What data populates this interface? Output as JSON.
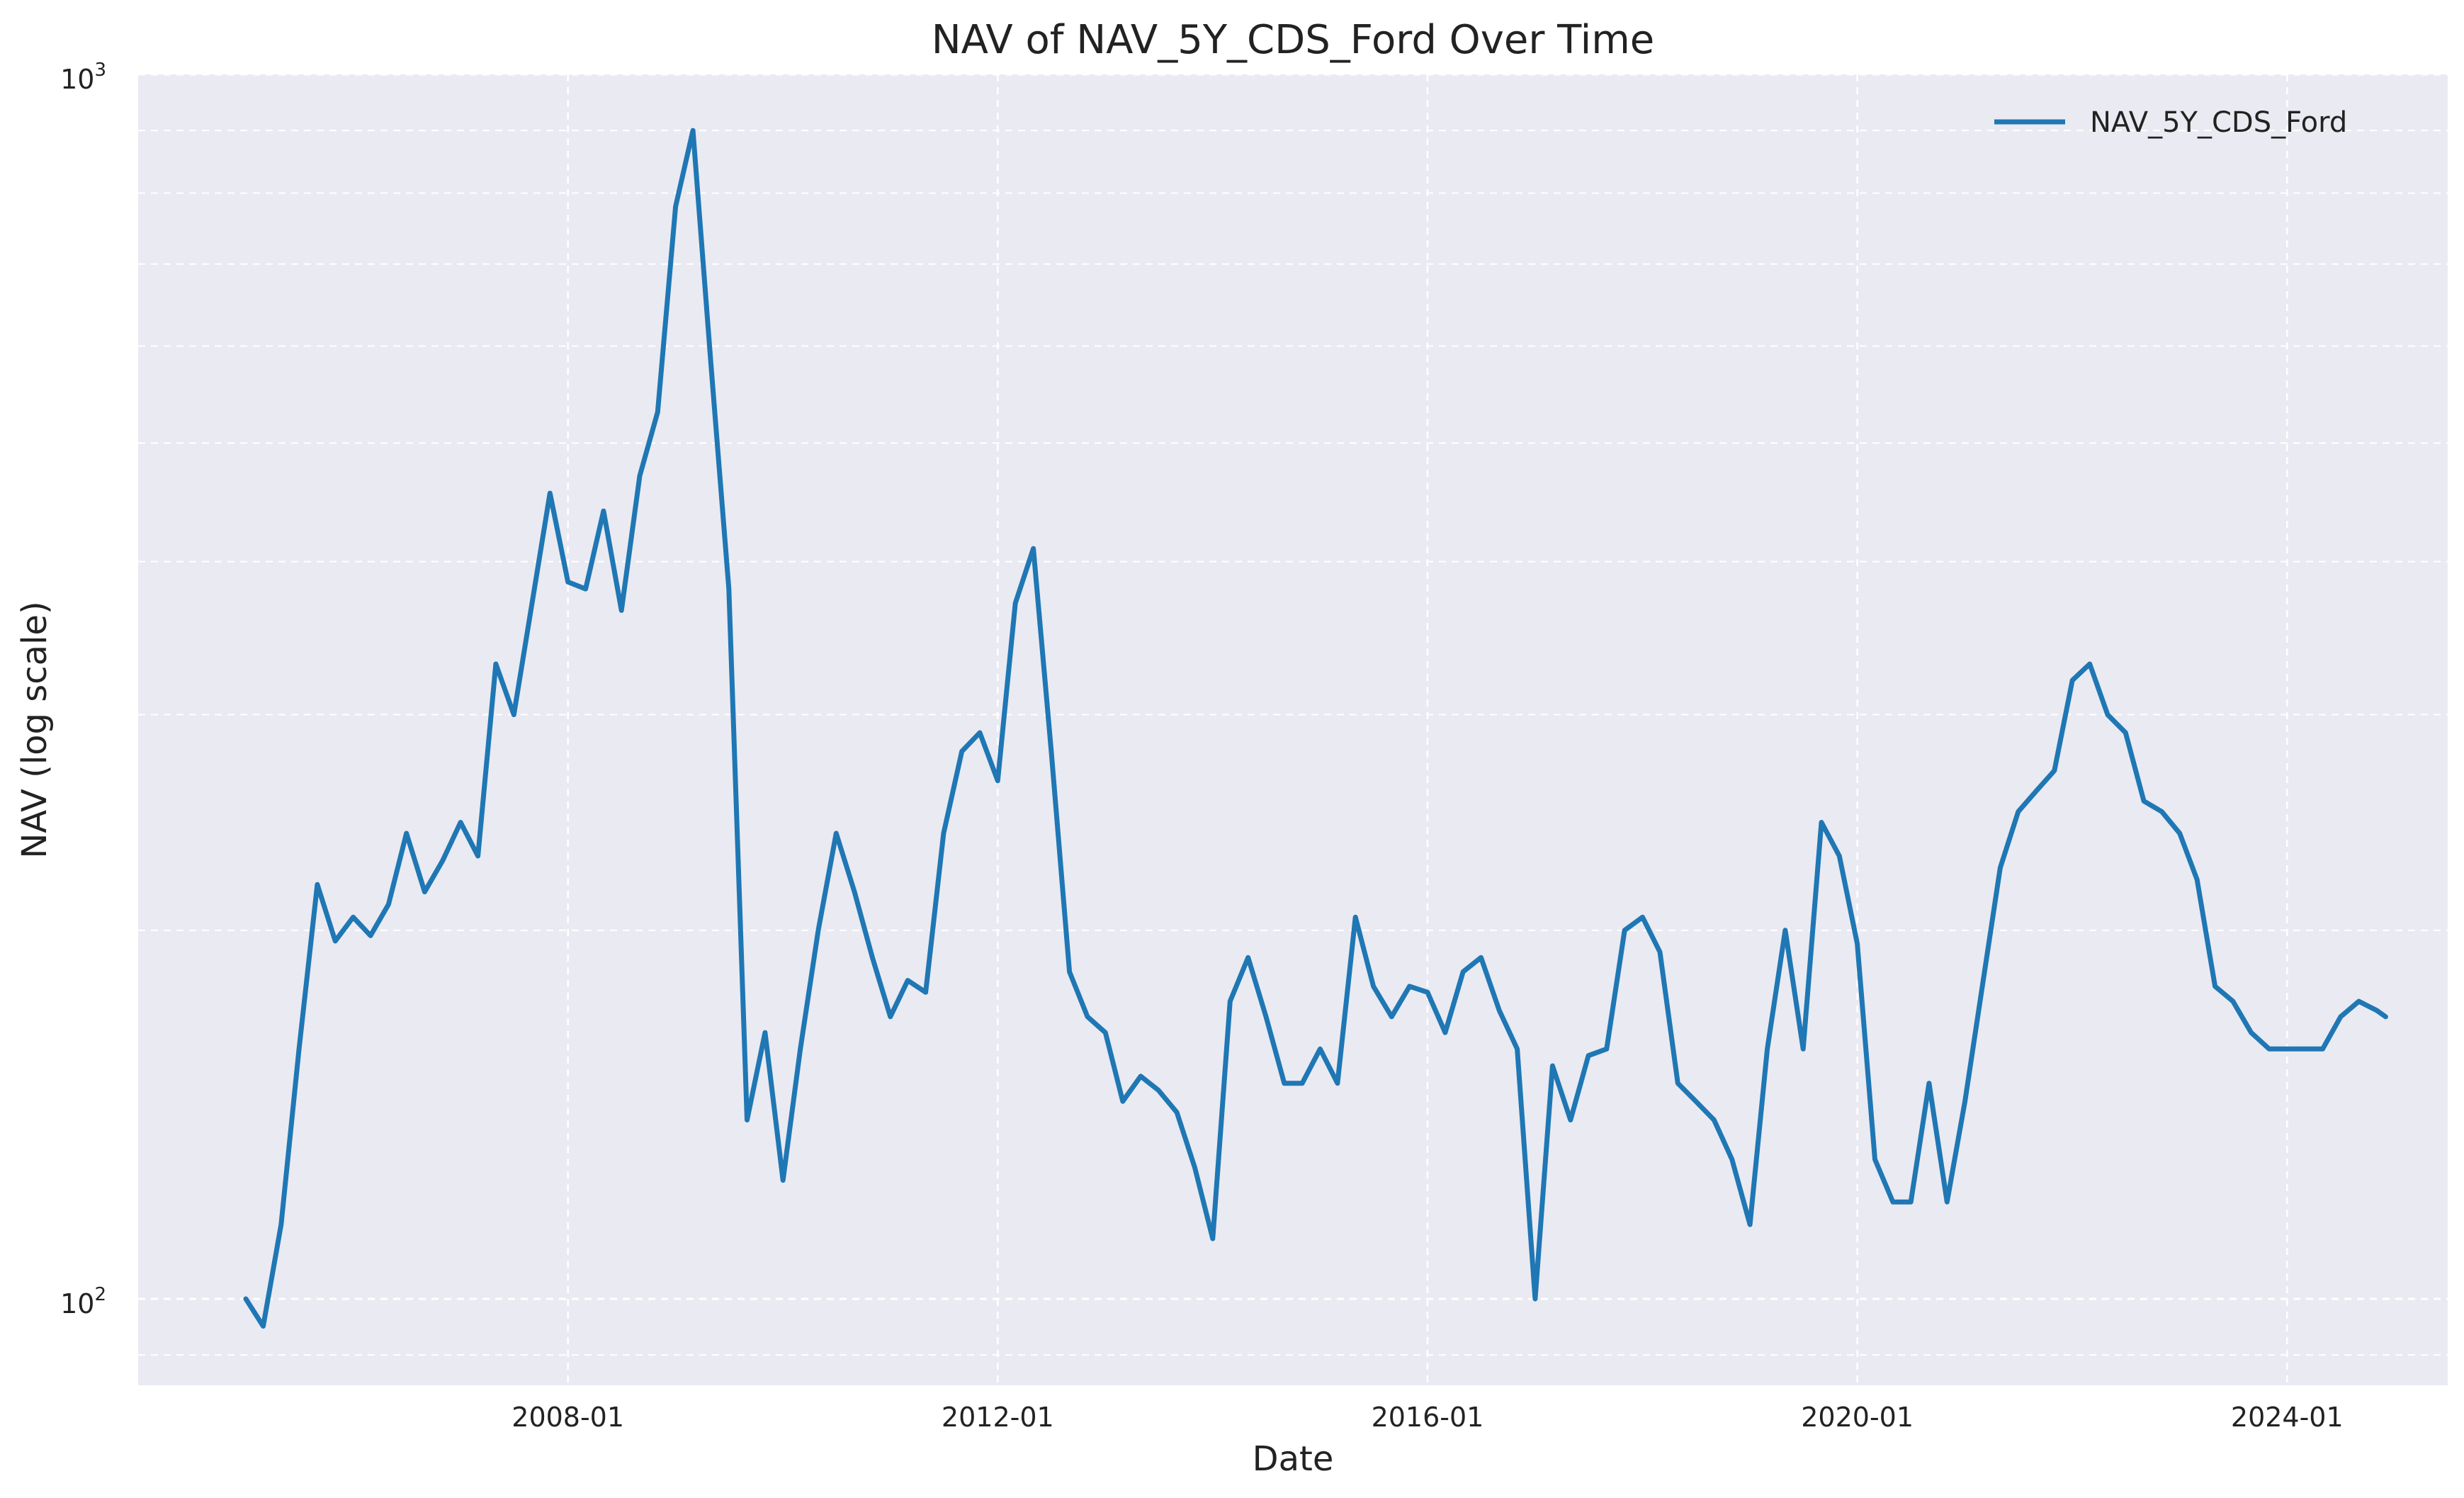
{
  "chart_data": {
    "type": "line",
    "title": "NAV of NAV_5Y_CDS_Ford Over Time",
    "xlabel": "Date",
    "ylabel": "NAV (log scale)",
    "yscale": "log",
    "ylim": [
      85,
      1000
    ],
    "xlim": [
      "2004-01-01",
      "2025-06-30"
    ],
    "x_ticks": [
      "2008-01",
      "2012-01",
      "2016-01",
      "2020-01",
      "2024-01"
    ],
    "y_ticks": [
      {
        "value": 100,
        "base": "10",
        "exp": "2"
      },
      {
        "value": 1000,
        "base": "10",
        "exp": "3"
      }
    ],
    "grid": true,
    "legend_position": "top-right",
    "colors": {
      "background": "#eaeaf2",
      "grid": "#ffffff",
      "series": "#1f77b4"
    },
    "series": [
      {
        "name": "NAV_5Y_CDS_Ford",
        "x": [
          "2005-01",
          "2005-03",
          "2005-05",
          "2005-07",
          "2005-09",
          "2005-11",
          "2006-01",
          "2006-03",
          "2006-05",
          "2006-07",
          "2006-09",
          "2006-11",
          "2007-01",
          "2007-03",
          "2007-05",
          "2007-07",
          "2007-09",
          "2007-11",
          "2008-01",
          "2008-03",
          "2008-05",
          "2008-07",
          "2008-09",
          "2008-11",
          "2009-01",
          "2009-03",
          "2009-05",
          "2009-07",
          "2009-09",
          "2009-11",
          "2010-01",
          "2010-03",
          "2010-05",
          "2010-07",
          "2010-09",
          "2010-11",
          "2011-01",
          "2011-03",
          "2011-05",
          "2011-07",
          "2011-09",
          "2011-11",
          "2012-01",
          "2012-03",
          "2012-05",
          "2012-07",
          "2012-09",
          "2012-11",
          "2013-01",
          "2013-03",
          "2013-05",
          "2013-07",
          "2013-09",
          "2013-11",
          "2014-01",
          "2014-03",
          "2014-05",
          "2014-07",
          "2014-09",
          "2014-11",
          "2015-01",
          "2015-03",
          "2015-05",
          "2015-07",
          "2015-09",
          "2015-11",
          "2016-01",
          "2016-03",
          "2016-05",
          "2016-07",
          "2016-09",
          "2016-11",
          "2017-01",
          "2017-03",
          "2017-05",
          "2017-07",
          "2017-09",
          "2017-11",
          "2018-01",
          "2018-03",
          "2018-05",
          "2018-07",
          "2018-09",
          "2018-11",
          "2019-01",
          "2019-03",
          "2019-05",
          "2019-07",
          "2019-09",
          "2019-11",
          "2020-01",
          "2020-03",
          "2020-05",
          "2020-07",
          "2020-09",
          "2020-11",
          "2021-01",
          "2021-03",
          "2021-05",
          "2021-07",
          "2021-09",
          "2021-11",
          "2022-01",
          "2022-03",
          "2022-05",
          "2022-07",
          "2022-09",
          "2022-11",
          "2023-01",
          "2023-03",
          "2023-05",
          "2023-07",
          "2023-09",
          "2023-11",
          "2024-01",
          "2024-03",
          "2024-05",
          "2024-07",
          "2024-09",
          "2024-11",
          "2024-12"
        ],
        "y": [
          100,
          95,
          115,
          160,
          218,
          196,
          205,
          198,
          210,
          240,
          215,
          228,
          245,
          230,
          330,
          300,
          370,
          455,
          385,
          380,
          440,
          365,
          470,
          530,
          780,
          900,
          580,
          380,
          140,
          165,
          125,
          160,
          200,
          240,
          215,
          190,
          170,
          182,
          178,
          240,
          280,
          290,
          265,
          370,
          410,
          280,
          185,
          170,
          165,
          145,
          152,
          148,
          142,
          128,
          112,
          175,
          190,
          170,
          150,
          150,
          160,
          150,
          205,
          180,
          170,
          180,
          178,
          165,
          185,
          190,
          172,
          160,
          100,
          155,
          140,
          158,
          160,
          200,
          205,
          192,
          150,
          145,
          140,
          130,
          115,
          160,
          200,
          160,
          245,
          230,
          195,
          130,
          120,
          120,
          150,
          120,
          145,
          180,
          225,
          250,
          260,
          270,
          320,
          330,
          300,
          290,
          255,
          250,
          240,
          220,
          180,
          175,
          165,
          160,
          160,
          160,
          160,
          170,
          175,
          172,
          170
        ]
      }
    ]
  }
}
